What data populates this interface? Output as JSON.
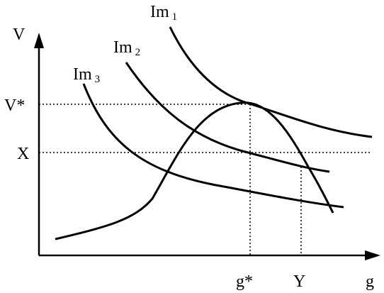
{
  "axes": {
    "y_label": "V",
    "x_label": "g"
  },
  "curves": [
    {
      "label": "Im",
      "subscript": "1"
    },
    {
      "label": "Im",
      "subscript": "2"
    },
    {
      "label": "Im",
      "subscript": "3"
    }
  ],
  "levels": {
    "v_star": "V*",
    "x": "X",
    "g_star": "g*",
    "y": "Y"
  }
}
